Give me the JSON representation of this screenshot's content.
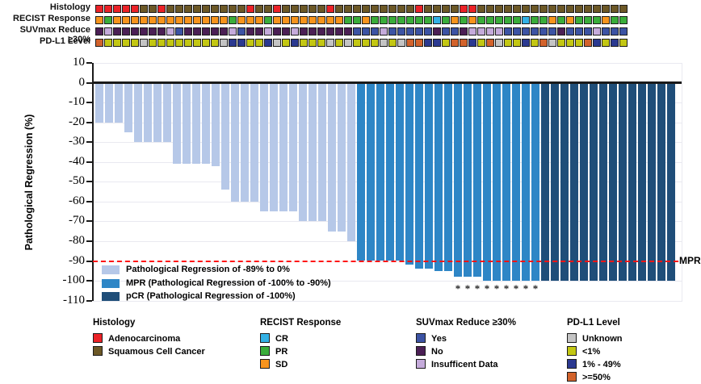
{
  "figure": {
    "type_description": "Waterfall plot of pathological regression with clinical annotation tracks"
  },
  "colors": {
    "bar_light": "#b6c8e8",
    "bar_mpr": "#2e86c6",
    "bar_pcr": "#1f4e79",
    "mpr_line": "#ff1414",
    "zero_line": "#1a1a1a",
    "grid": "#e9e9f0",
    "adenocarcinoma": "#eb2227",
    "squamous": "#6c5826",
    "cr": "#33b1e5",
    "pr": "#3aad3a",
    "sd": "#f7941d",
    "suv_yes": "#3c53a4",
    "suv_no": "#4b1f55",
    "suv_insufficient": "#c5abdb",
    "pdl1_unknown": "#c4c4c4",
    "pdl1_lt1": "#c3c713",
    "pdl1_1_49": "#2b3990",
    "pdl1_ge50": "#d2622b"
  },
  "tracks": {
    "rows": [
      {
        "key": "histology",
        "label": "Histology"
      },
      {
        "key": "recist",
        "label": "RECIST Response"
      },
      {
        "key": "suvmax",
        "label": "SUVmax Reduce ≥30%"
      },
      {
        "key": "pdl1",
        "label": "PD-L1 Level"
      }
    ],
    "color_keys": {
      "histology": {
        "A": "adenocarcinoma",
        "S": "squamous"
      },
      "recist": {
        "CR": "cr",
        "PR": "pr",
        "SD": "sd"
      },
      "suvmax": {
        "Y": "suv_yes",
        "N": "suv_no",
        "I": "suv_insufficient"
      },
      "pdl1": {
        "U": "pdl1_unknown",
        "L": "pdl1_lt1",
        "M": "pdl1_1_49",
        "H": "pdl1_ge50"
      }
    },
    "values": {
      "histology": [
        "A",
        "A",
        "A",
        "A",
        "A",
        "S",
        "S",
        "A",
        "S",
        "S",
        "S",
        "S",
        "S",
        "S",
        "S",
        "S",
        "S",
        "A",
        "S",
        "S",
        "A",
        "S",
        "S",
        "S",
        "S",
        "S",
        "A",
        "S",
        "S",
        "S",
        "S",
        "S",
        "S",
        "S",
        "S",
        "S",
        "A",
        "S",
        "S",
        "S",
        "S",
        "A",
        "A",
        "S",
        "S",
        "S",
        "S",
        "S",
        "S",
        "S",
        "S",
        "S",
        "S",
        "S",
        "S",
        "S",
        "S",
        "S",
        "S",
        "S"
      ],
      "recist": [
        "SD",
        "PR",
        "SD",
        "SD",
        "SD",
        "SD",
        "SD",
        "SD",
        "SD",
        "SD",
        "SD",
        "SD",
        "SD",
        "SD",
        "SD",
        "PR",
        "SD",
        "SD",
        "SD",
        "PR",
        "SD",
        "SD",
        "SD",
        "SD",
        "SD",
        "SD",
        "SD",
        "SD",
        "PR",
        "PR",
        "SD",
        "PR",
        "PR",
        "PR",
        "PR",
        "PR",
        "PR",
        "PR",
        "CR",
        "PR",
        "SD",
        "PR",
        "SD",
        "PR",
        "PR",
        "PR",
        "PR",
        "PR",
        "CR",
        "PR",
        "PR",
        "SD",
        "PR",
        "SD",
        "PR",
        "PR",
        "PR",
        "SD",
        "PR",
        "PR"
      ],
      "suvmax": [
        "N",
        "I",
        "N",
        "N",
        "N",
        "N",
        "N",
        "N",
        "I",
        "Y",
        "N",
        "N",
        "N",
        "N",
        "N",
        "I",
        "Y",
        "N",
        "N",
        "I",
        "N",
        "N",
        "I",
        "N",
        "N",
        "N",
        "N",
        "N",
        "N",
        "Y",
        "Y",
        "Y",
        "I",
        "Y",
        "Y",
        "Y",
        "Y",
        "Y",
        "N",
        "Y",
        "Y",
        "N",
        "I",
        "I",
        "I",
        "I",
        "Y",
        "Y",
        "Y",
        "Y",
        "Y",
        "Y",
        "N",
        "Y",
        "Y",
        "Y",
        "I",
        "Y",
        "Y",
        "Y"
      ],
      "pdl1": [
        "H",
        "L",
        "L",
        "L",
        "L",
        "U",
        "L",
        "L",
        "L",
        "L",
        "L",
        "L",
        "L",
        "L",
        "U",
        "M",
        "M",
        "L",
        "L",
        "M",
        "U",
        "L",
        "M",
        "L",
        "L",
        "L",
        "U",
        "L",
        "U",
        "L",
        "L",
        "L",
        "U",
        "L",
        "U",
        "H",
        "H",
        "M",
        "M",
        "L",
        "H",
        "H",
        "M",
        "L",
        "H",
        "U",
        "L",
        "L",
        "M",
        "L",
        "H",
        "U",
        "L",
        "L",
        "L",
        "H",
        "M",
        "L",
        "M",
        "L"
      ]
    }
  },
  "chart_data": {
    "type": "bar",
    "title": "",
    "xlabel": "",
    "ylabel": "Pathological Regression (%)",
    "ylim": [
      -110,
      10
    ],
    "yticks": [
      10,
      0,
      -10,
      -20,
      -30,
      -40,
      -50,
      -60,
      -70,
      -80,
      -90,
      -100,
      -110
    ],
    "grid": true,
    "n_patients": 60,
    "values": [
      -20,
      -20,
      -20,
      -25,
      -30,
      -30,
      -30,
      -30,
      -41,
      -41,
      -41,
      -41,
      -42,
      -54,
      -60,
      -60,
      -60,
      -65,
      -65,
      -65,
      -65,
      -70,
      -70,
      -70,
      -75,
      -75,
      -80,
      -90,
      -90,
      -90,
      -90,
      -90,
      -92,
      -94,
      -94,
      -95,
      -95,
      -98,
      -98,
      -98,
      -100,
      -100,
      -100,
      -100,
      -100,
      -100,
      -100,
      -100,
      -100,
      -100,
      -100,
      -100,
      -100,
      -100,
      -100,
      -100,
      -100,
      -100,
      -100,
      -100
    ],
    "segments": {
      "light": [
        1,
        27
      ],
      "mpr": [
        28,
        46
      ],
      "pcr": [
        47,
        60
      ]
    },
    "asterisk_indices": [
      38,
      39,
      40,
      41,
      42,
      43,
      44,
      45,
      46
    ],
    "asterisk_glyph": "*",
    "reference_line": {
      "value": -90,
      "label": "MPR",
      "style": "dashed",
      "color": "#ff1414"
    },
    "legend": [
      {
        "color_key": "bar_light",
        "label": "Pathological Regression of -89% to 0%"
      },
      {
        "color_key": "bar_mpr",
        "label": "MPR (Pathological Regression of -100% to -90%)"
      },
      {
        "color_key": "bar_pcr",
        "label": "pCR (Pathological Regression of -100%)"
      }
    ],
    "legend_position": "lower-left"
  },
  "bottom_legend": [
    {
      "title": "Histology",
      "items": [
        {
          "label": "Adenocarcinoma",
          "color_key": "adenocarcinoma"
        },
        {
          "label": "Squamous Cell Cancer",
          "color_key": "squamous"
        }
      ]
    },
    {
      "title": "RECIST Response",
      "items": [
        {
          "label": "CR",
          "color_key": "cr"
        },
        {
          "label": "PR",
          "color_key": "pr"
        },
        {
          "label": "SD",
          "color_key": "sd"
        }
      ]
    },
    {
      "title": "SUVmax Reduce ≥30%",
      "items": [
        {
          "label": "Yes",
          "color_key": "suv_yes"
        },
        {
          "label": "No",
          "color_key": "suv_no"
        },
        {
          "label": "Insufficent Data",
          "color_key": "suv_insufficient"
        }
      ]
    },
    {
      "title": "PD-L1 Level",
      "items": [
        {
          "label": "Unknown",
          "color_key": "pdl1_unknown"
        },
        {
          "label": "<1%",
          "color_key": "pdl1_lt1"
        },
        {
          "label": "1% - 49%",
          "color_key": "pdl1_1_49"
        },
        {
          "label": ">=50%",
          "color_key": "pdl1_ge50"
        }
      ]
    }
  ]
}
